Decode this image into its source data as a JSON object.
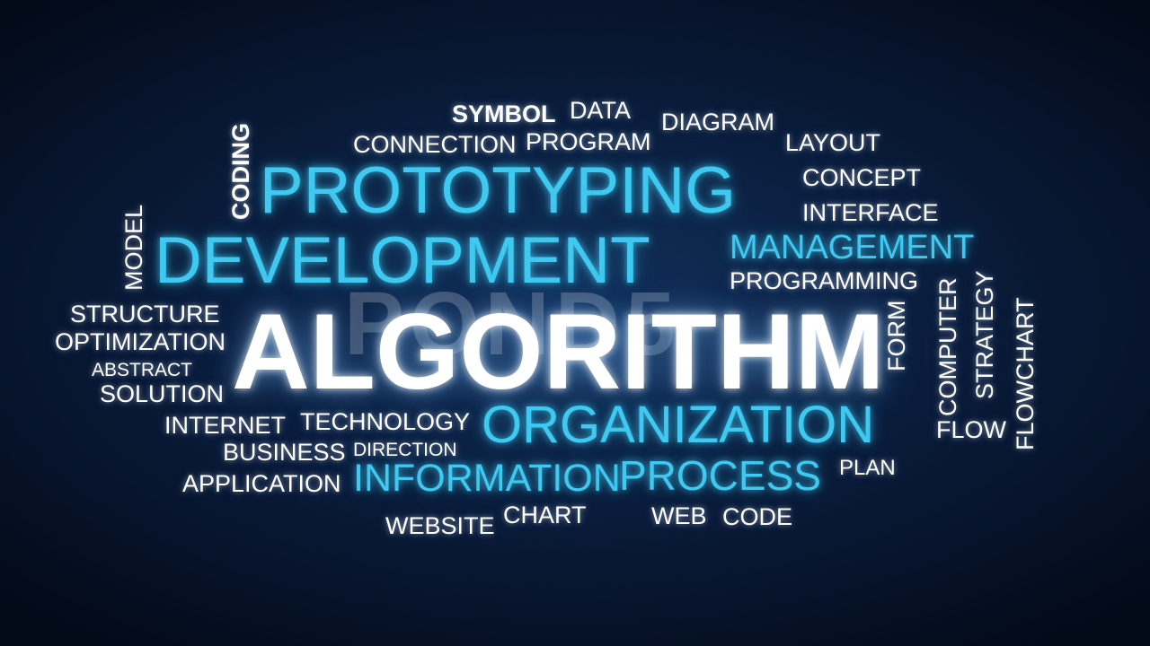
{
  "colors": {
    "background": "#0a1d3d",
    "highlight_blue": "#3fc8f0",
    "text_white": "#ffffff"
  },
  "watermark": "POND5",
  "words": {
    "symbol": "SYMBOL",
    "data": "DATA",
    "diagram": "DIAGRAM",
    "connection": "CONNECTION",
    "program": "PROGRAM",
    "layout": "LAYOUT",
    "coding": "CODING",
    "prototyping": "PROTOTYPING",
    "concept": "CONCEPT",
    "interface": "INTERFACE",
    "model": "MODEL",
    "development": "DEVELOPMENT",
    "management": "MANAGEMENT",
    "programming": "PROGRAMMING",
    "structure": "STRUCTURE",
    "optimization": "OPTIMIZATION",
    "algorithm": "ALGORITHM",
    "form": "FORM",
    "computer": "COMPUTER",
    "strategy": "STRATEGY",
    "flowchart": "FLOWCHART",
    "abstract": "ABSTRACT",
    "solution": "SOLUTION",
    "internet": "INTERNET",
    "technology": "TECHNOLOGY",
    "organization": "ORGANIZATION",
    "flow": "FLOW",
    "business": "BUSINESS",
    "direction": "DIRECTION",
    "application": "APPLICATION",
    "information": "INFORMATION",
    "process": "PROCESS",
    "plan": "PLAN",
    "website": "WEBSITE",
    "chart": "CHART",
    "web": "WEB",
    "code": "CODE"
  }
}
